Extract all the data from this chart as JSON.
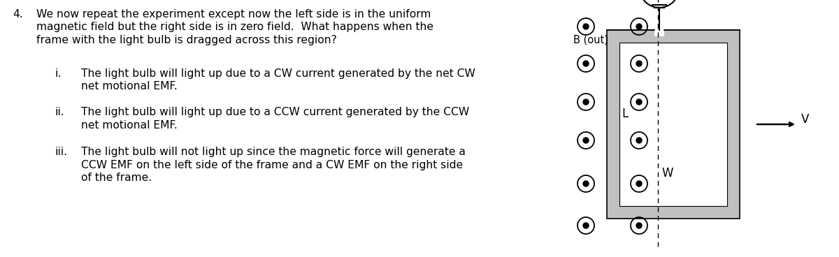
{
  "title_num": "4.",
  "question_text": [
    "We now repeat the experiment except now the left side is in the uniform",
    "magnetic field but the right side is in zero field.  What happens when the",
    "frame with the light bulb is dragged across this region?"
  ],
  "options": [
    {
      "label": "i.",
      "lines": [
        "The light bulb will light up due to a CW current generated by the net CW",
        "net motional EMF."
      ]
    },
    {
      "label": "ii.",
      "lines": [
        "The light bulb will light up due to a CCW current generated by the CCW",
        "net motional EMF."
      ]
    },
    {
      "label": "iii.",
      "lines": [
        "The light bulb will not light up since the magnetic force will generate a",
        "CCW EMF on the left side of the frame and a CW EMF on the right side",
        "of the frame."
      ]
    }
  ],
  "diagram": {
    "b_label": "B (out)",
    "v_label": "V",
    "l_label": "L",
    "w_label": "W",
    "frame_color": "#bbbbbb",
    "background_color": "#ffffff"
  }
}
